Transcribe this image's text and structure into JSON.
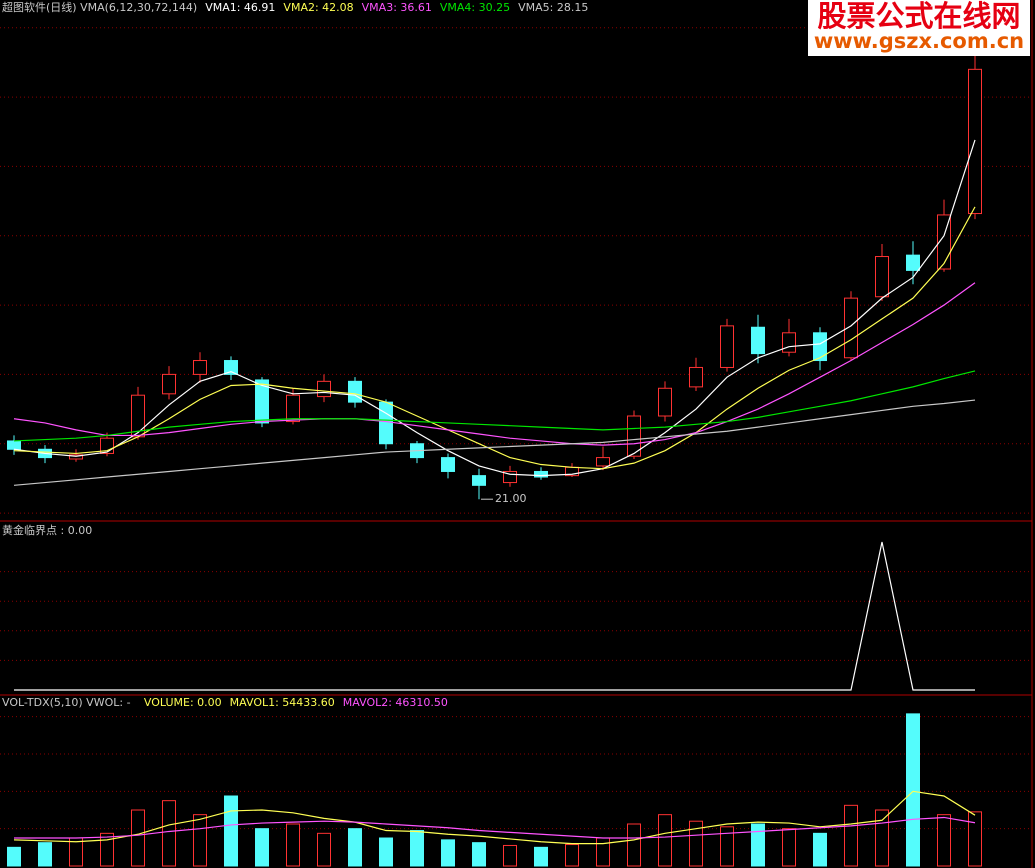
{
  "watermark": {
    "title": "股票公式在线网",
    "url": "www.gszx.com.cn"
  },
  "chart_data": [
    {
      "type": "candlestick",
      "title": "超图软件(日线) VMA(6,12,30,72,144)",
      "open": [
        25.2,
        24.6,
        23.9,
        24.3,
        25.5,
        28.6,
        30.0,
        31.0,
        29.6,
        26.6,
        28.4,
        29.5,
        28.0,
        25.0,
        24.0,
        22.7,
        22.2,
        23.0,
        22.7,
        23.4,
        24.1,
        27.0,
        29.1,
        30.5,
        33.4,
        31.6,
        33.0,
        31.2,
        35.6,
        38.6,
        37.6,
        41.6
      ],
      "high": [
        25.6,
        24.9,
        24.6,
        25.8,
        29.1,
        30.6,
        31.6,
        31.3,
        29.8,
        29.0,
        30.0,
        29.8,
        28.2,
        25.2,
        24.3,
        23.2,
        23.4,
        23.3,
        23.6,
        24.8,
        27.4,
        29.5,
        31.2,
        34.0,
        34.3,
        34.0,
        33.4,
        36.0,
        39.4,
        39.6,
        42.6,
        54.0
      ],
      "low": [
        24.2,
        23.6,
        23.7,
        24.1,
        25.3,
        28.2,
        29.4,
        29.6,
        26.2,
        26.4,
        28.0,
        27.6,
        24.6,
        23.6,
        22.5,
        21.0,
        21.9,
        22.4,
        22.6,
        23.1,
        23.9,
        26.6,
        28.8,
        30.2,
        30.8,
        31.3,
        30.3,
        31.0,
        35.3,
        36.5,
        37.4,
        41.2
      ],
      "close": [
        24.6,
        24.0,
        24.2,
        25.4,
        28.5,
        30.0,
        31.0,
        30.0,
        26.5,
        28.5,
        29.5,
        28.0,
        25.0,
        24.0,
        23.0,
        22.0,
        23.0,
        22.6,
        23.3,
        24.0,
        27.0,
        29.0,
        30.5,
        33.5,
        31.5,
        33.0,
        31.0,
        35.5,
        38.5,
        37.5,
        41.5,
        52.0
      ],
      "up_color": "#ff3232",
      "down_color": "#54fcfc",
      "low_label": {
        "index": 15,
        "text": "21.00"
      },
      "series": [
        {
          "label": "VMA1: 46.91",
          "color": "#ffffff",
          "values": [
            24.6,
            24.3,
            24.1,
            24.4,
            25.8,
            27.8,
            29.5,
            30.2,
            29.2,
            28.6,
            28.7,
            28.5,
            27.2,
            25.8,
            24.5,
            23.4,
            22.8,
            22.7,
            22.8,
            23.2,
            24.3,
            25.8,
            27.5,
            29.8,
            31.2,
            32.0,
            32.2,
            33.5,
            35.5,
            37.0,
            40.0,
            46.91
          ]
        },
        {
          "label": "VMA2: 42.08",
          "color": "#ffff54",
          "values": [
            24.5,
            24.4,
            24.3,
            24.5,
            25.5,
            26.8,
            28.2,
            29.2,
            29.3,
            29.0,
            28.8,
            28.6,
            28.0,
            27.0,
            26.0,
            25.0,
            24.0,
            23.5,
            23.3,
            23.2,
            23.6,
            24.5,
            25.8,
            27.5,
            29.0,
            30.3,
            31.2,
            32.5,
            34.0,
            35.5,
            38.0,
            42.08
          ]
        },
        {
          "label": "VMA3: 36.61",
          "color": "#ff54ff",
          "values": [
            26.8,
            26.5,
            26.0,
            25.6,
            25.6,
            25.8,
            26.1,
            26.4,
            26.6,
            26.7,
            26.8,
            26.8,
            26.6,
            26.3,
            26.0,
            25.7,
            25.4,
            25.2,
            25.0,
            24.9,
            25.0,
            25.3,
            25.8,
            26.6,
            27.5,
            28.6,
            29.8,
            31.0,
            32.3,
            33.6,
            35.0,
            36.61
          ]
        },
        {
          "label": "VMA4: 30.25",
          "color": "#00e600",
          "values": [
            25.2,
            25.3,
            25.4,
            25.6,
            25.9,
            26.2,
            26.4,
            26.6,
            26.7,
            26.8,
            26.8,
            26.8,
            26.7,
            26.6,
            26.5,
            26.4,
            26.3,
            26.2,
            26.1,
            26.0,
            26.1,
            26.2,
            26.4,
            26.6,
            26.9,
            27.3,
            27.7,
            28.1,
            28.6,
            29.1,
            29.7,
            30.25
          ]
        },
        {
          "label": "VMA5: 28.15",
          "color": "#c8c8c8",
          "values": [
            22.0,
            22.2,
            22.4,
            22.6,
            22.8,
            23.0,
            23.2,
            23.4,
            23.6,
            23.8,
            24.0,
            24.2,
            24.4,
            24.5,
            24.6,
            24.7,
            24.8,
            24.9,
            25.0,
            25.1,
            25.3,
            25.5,
            25.7,
            25.9,
            26.2,
            26.5,
            26.8,
            27.1,
            27.4,
            27.7,
            27.9,
            28.15
          ]
        }
      ],
      "ylim": [
        19.5,
        57
      ],
      "yticks": [
        20,
        25,
        30,
        35,
        40,
        45,
        50,
        55
      ],
      "grid": true
    },
    {
      "type": "line",
      "title": "黄金临界点 : 0.00",
      "color": "#ffffff",
      "values": [
        0,
        0,
        0,
        0,
        0,
        0,
        0,
        0,
        0,
        0,
        0,
        0,
        0,
        0,
        0,
        0,
        0,
        0,
        0,
        0,
        0,
        0,
        0,
        0,
        0,
        0,
        0,
        0,
        1,
        0,
        0,
        0
      ],
      "ylim": [
        0,
        1
      ],
      "yticks": [
        0.2,
        0.4,
        0.6,
        0.8
      ],
      "grid": true
    },
    {
      "type": "bar",
      "title": "VOL-TDX(5,10) VWOL: -",
      "value_label": "VOLUME: 0.00",
      "values": [
        20000,
        25000,
        30000,
        35000,
        60000,
        70000,
        55000,
        75000,
        40000,
        45000,
        35000,
        40000,
        30000,
        38000,
        28000,
        25000,
        22000,
        20000,
        23000,
        30000,
        45000,
        55000,
        48000,
        42000,
        45000,
        40000,
        35000,
        65000,
        60000,
        163000,
        55000,
        58000
      ],
      "series": [
        {
          "label": "MAVOL1: 54433.60",
          "color": "#ffff54",
          "values": [
            28000,
            27000,
            26000,
            28000,
            34000,
            44000,
            50000,
            59000,
            60000,
            57000,
            51000,
            47000,
            38000,
            37000,
            34000,
            32000,
            29000,
            26000,
            24000,
            24000,
            28000,
            35000,
            40000,
            45000,
            47000,
            46000,
            42000,
            45000,
            49000,
            80000,
            75000,
            54433.6
          ]
        },
        {
          "label": "MAVOL2: 46310.50",
          "color": "#ff54ff",
          "values": [
            30000,
            30000,
            30000,
            31000,
            33000,
            37000,
            40000,
            44000,
            46000,
            47000,
            48000,
            47000,
            45000,
            43000,
            41000,
            38000,
            36000,
            34000,
            32000,
            30000,
            30000,
            31000,
            33000,
            35000,
            37000,
            39000,
            41000,
            43000,
            46000,
            50000,
            52000,
            46310.5
          ]
        }
      ],
      "ylim": [
        0,
        165000
      ],
      "yticks": [
        40000,
        80000,
        120000,
        160000
      ],
      "grid": true
    }
  ]
}
